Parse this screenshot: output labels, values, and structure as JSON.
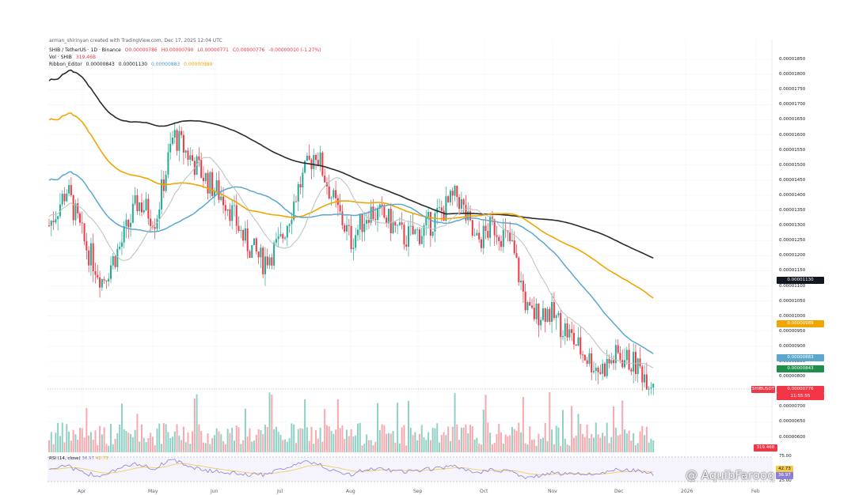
{
  "credit": "arman_shirinyan created with TradingView.com, Dec 17, 2025 12:04 UTC",
  "symbol_line": {
    "symbol": "SHIB / TetherUS · 1D · Binance",
    "open": "O0.00000786",
    "high": "H0.00000790",
    "low": "L0.00000771",
    "close": "C0.00000776",
    "change": "-0.00000010 (-1.27%)"
  },
  "vol_line": {
    "label": "Vol · SHIB",
    "value": "319.46B"
  },
  "ma_line": {
    "label": "Ribbon_Editor",
    "v1": "0.00000843",
    "v2": "0.00001130",
    "v3": "0.00000883",
    "v4": "0.00000989"
  },
  "rsi_line": {
    "label": "RSI (14, close)",
    "v1": "36.97",
    "v2": "42.73"
  },
  "watermark": "@ AquibFarooq",
  "colors": {
    "up": "#22ab94",
    "down": "#f23645",
    "ma200": "#2a2a2a",
    "ma100": "#f0a500",
    "ma50": "#5aa7cf",
    "ma20": "#b7c2bc",
    "rsi": "#8a7fd6",
    "rsi_ma": "#f2c94c"
  },
  "y_ticks": [
    "0.00001850",
    "0.00001800",
    "0.00001750",
    "0.00001700",
    "0.00001650",
    "0.00001600",
    "0.00001550",
    "0.00001500",
    "0.00001450",
    "0.00001400",
    "0.00001350",
    "0.00001300",
    "0.00001250",
    "0.00001200",
    "0.00001150",
    "0.00001100",
    "0.00001050",
    "0.00001000",
    "0.00000950",
    "0.00000900",
    "0.00000850",
    "0.00000800",
    "0.00000750",
    "0.00000700",
    "0.00000650",
    "0.00000600"
  ],
  "price_labels": {
    "ma200": "0.00001130",
    "ma100": "0.00000989",
    "ma50": "0.00000883",
    "ma20": "0.00000843",
    "last": "0.00000776",
    "countdown": "11:55:55",
    "symbol_tag": "SHIBUSDT",
    "volume": "319.46B"
  },
  "rsi_ticks": [
    "75.00",
    "25.00"
  ],
  "rsi_value": "36.97",
  "rsi_ma_value": "42.73",
  "x_ticks": [
    "Apr",
    "May",
    "Jun",
    "Jul",
    "Aug",
    "Sep",
    "Oct",
    "Nov",
    "Dec",
    "2026",
    "Feb"
  ],
  "chart_data": {
    "type": "candlestick",
    "title": "SHIB / TetherUS · 1D · Binance",
    "x_range": [
      "2025-03-17",
      "2026-02-10"
    ],
    "y_range": [
      5.8e-06,
      1.88e-05
    ],
    "last_price": 7.76e-06,
    "series": [
      {
        "name": "close",
        "x": [
          "2025-03-17",
          "2025-03-24",
          "2025-04-01",
          "2025-04-08",
          "2025-04-15",
          "2025-04-22",
          "2025-05-01",
          "2025-05-08",
          "2025-05-12",
          "2025-05-20",
          "2025-06-01",
          "2025-06-10",
          "2025-06-22",
          "2025-07-01",
          "2025-07-10",
          "2025-07-14",
          "2025-07-22",
          "2025-08-01",
          "2025-08-08",
          "2025-08-15",
          "2025-08-25",
          "2025-09-01",
          "2025-09-10",
          "2025-09-14",
          "2025-09-22",
          "2025-10-01",
          "2025-10-06",
          "2025-10-10",
          "2025-10-20",
          "2025-11-01",
          "2025-11-10",
          "2025-11-20",
          "2025-12-01",
          "2025-12-08",
          "2025-12-17"
        ],
        "values": [
          1.3e-05,
          1.42e-05,
          1.24e-05,
          1.12e-05,
          1.23e-05,
          1.38e-05,
          1.32e-05,
          1.6e-05,
          1.52e-05,
          1.44e-05,
          1.38e-05,
          1.25e-05,
          1.18e-05,
          1.24e-05,
          1.42e-05,
          1.55e-05,
          1.38e-05,
          1.25e-05,
          1.35e-05,
          1.32e-05,
          1.26e-05,
          1.28e-05,
          1.34e-05,
          1.4e-05,
          1.24e-05,
          1.3e-05,
          1.24e-05,
          1e-05,
          1.02e-05,
          9.6e-06,
          8.8e-06,
          8.2e-06,
          8.7e-06,
          8.4e-06,
          7.76e-06
        ]
      },
      {
        "name": "MA200",
        "last": 1.13e-05
      },
      {
        "name": "MA100",
        "last": 9.89e-06
      },
      {
        "name": "MA50",
        "last": 8.83e-06
      },
      {
        "name": "MA20",
        "last": 8.43e-06
      }
    ],
    "volume_last": "319.46B",
    "rsi": {
      "period": 14,
      "last": 36.97,
      "ma_last": 42.73,
      "bands": [
        75,
        25
      ]
    }
  }
}
